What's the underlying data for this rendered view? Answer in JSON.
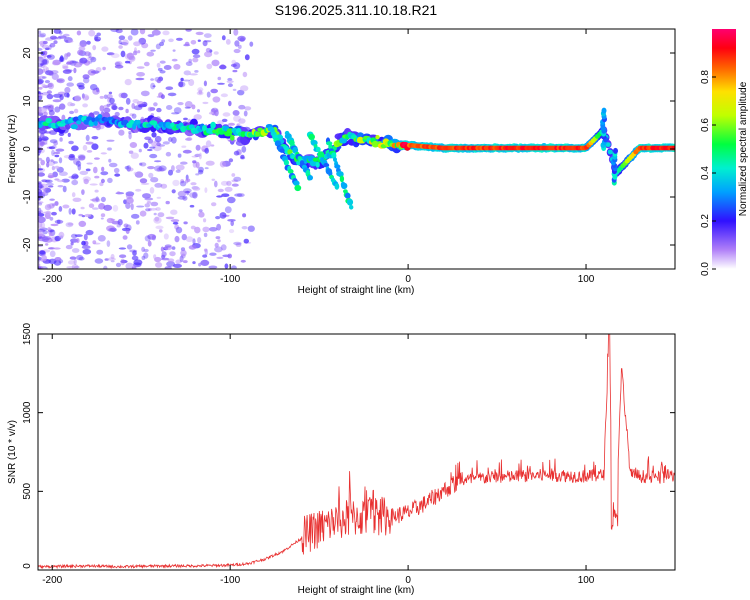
{
  "title": "S196.2025.311.10.18.R21",
  "chart_data": [
    {
      "type": "heatmap",
      "id": "spectrogram",
      "xlabel": "Height of straight line (km)",
      "ylabel": "Frequency (Hz)",
      "xlim": [
        -208,
        150
      ],
      "ylim": [
        -25,
        25
      ],
      "xticks": [
        -200,
        -100,
        0,
        100
      ],
      "yticks": [
        -20,
        -10,
        0,
        10,
        20
      ],
      "colorbar": {
        "label": "Normalized spectral amplitude",
        "range": [
          0,
          1
        ],
        "ticks": [
          0.0,
          0.2,
          0.4,
          0.6,
          0.8
        ],
        "tick_labels": [
          "0.0",
          "0.2",
          "0.4",
          "0.6",
          "0.8"
        ],
        "colors": [
          "#ffffff",
          "#9b59f5",
          "#2020ff",
          "#00c8ff",
          "#00ff60",
          "#b8ff00",
          "#ffff00",
          "#ff8000",
          "#ff0000",
          "#ff0080"
        ]
      },
      "ridge": [
        {
          "x": -190,
          "y": 5.5,
          "a": 0.35
        },
        {
          "x": -170,
          "y": 6.0,
          "a": 0.3
        },
        {
          "x": -150,
          "y": 5.0,
          "a": 0.35
        },
        {
          "x": -130,
          "y": 4.5,
          "a": 0.4
        },
        {
          "x": -115,
          "y": 4.0,
          "a": 0.4
        },
        {
          "x": -100,
          "y": 3.5,
          "a": 0.45
        },
        {
          "x": -90,
          "y": 3.0,
          "a": 0.5
        },
        {
          "x": -75,
          "y": 4.0,
          "a": 0.5
        },
        {
          "x": -65,
          "y": -2.0,
          "a": 0.45
        },
        {
          "x": -50,
          "y": -3.0,
          "a": 0.45
        },
        {
          "x": -35,
          "y": 3.0,
          "a": 0.5
        },
        {
          "x": -20,
          "y": 1.5,
          "a": 0.6
        },
        {
          "x": -10,
          "y": 1.0,
          "a": 0.6
        },
        {
          "x": 0,
          "y": 0.8,
          "a": 0.85
        },
        {
          "x": 20,
          "y": 0.2,
          "a": 0.9
        },
        {
          "x": 40,
          "y": 0.2,
          "a": 0.9
        },
        {
          "x": 60,
          "y": 0.2,
          "a": 0.92
        },
        {
          "x": 80,
          "y": 0.2,
          "a": 0.92
        },
        {
          "x": 100,
          "y": 0.2,
          "a": 0.9
        },
        {
          "x": 110,
          "y": 4.0,
          "a": 0.4
        },
        {
          "x": 117,
          "y": -5.0,
          "a": 0.4
        },
        {
          "x": 130,
          "y": 0.2,
          "a": 0.92
        },
        {
          "x": 150,
          "y": 0.2,
          "a": 0.92
        }
      ]
    },
    {
      "type": "line",
      "id": "snr",
      "xlabel": "Height of straight line (km)",
      "ylabel": "SNR (10 * v/v)",
      "xlim": [
        -208,
        150
      ],
      "ylim": [
        0,
        1500
      ],
      "xticks": [
        -200,
        -100,
        0,
        100
      ],
      "yticks": [
        0,
        500,
        1000,
        1500
      ],
      "color": "#e83030",
      "series": [
        {
          "name": "SNR envelope",
          "x": [
            -208,
            -180,
            -160,
            -140,
            -120,
            -100,
            -90,
            -80,
            -70,
            -60,
            -50,
            -40,
            -30,
            -20,
            -10,
            0,
            10,
            20,
            30,
            40,
            60,
            80,
            100,
            110,
            113,
            115,
            117,
            120,
            125,
            140,
            150
          ],
          "y": [
            20,
            25,
            20,
            25,
            25,
            30,
            40,
            70,
            120,
            200,
            250,
            300,
            320,
            330,
            330,
            360,
            420,
            500,
            560,
            580,
            590,
            600,
            590,
            600,
            1530,
            300,
            400,
            1280,
            600,
            580,
            600
          ]
        }
      ]
    }
  ]
}
